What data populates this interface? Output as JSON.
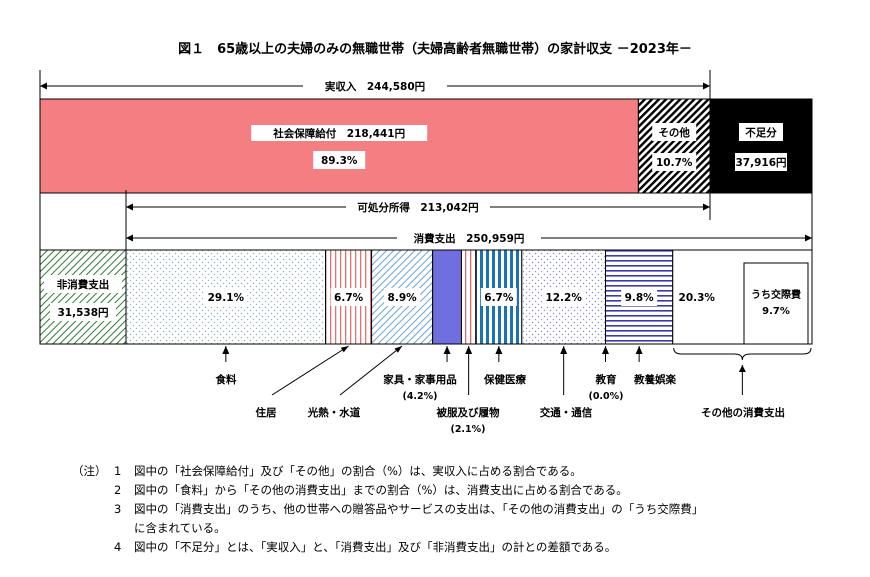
{
  "title": "図１　65歳以上の夫婦のみの無職世帯（夫婦高齢者無職世帯）の家計収支 －2023年－",
  "chart_data": {
    "type": "bar",
    "unit": "円",
    "income_row": {
      "total_label": "実収入　244,580円",
      "total_value": 244580,
      "segments": [
        {
          "name": "社会保障給付",
          "label": "社会保障給付　218,441円",
          "value": 218441,
          "pct_label": "89.3%",
          "pct": 89.3,
          "color": "#f47f83",
          "pattern": "solid"
        },
        {
          "name": "その他",
          "label": "その他",
          "value": 26139,
          "pct_label": "10.7%",
          "pct": 10.7,
          "color": "#000000",
          "pattern": "hatch"
        },
        {
          "name": "不足分",
          "label": "不足分",
          "value": 37916,
          "value_label": "37,916円",
          "color": "#000000",
          "pattern": "solid-black"
        }
      ]
    },
    "disposable": {
      "label": "可処分所得　213,042円",
      "value": 213042
    },
    "consumption": {
      "label": "消費支出　250,959円",
      "value": 250959
    },
    "spending_row": {
      "non_consumption": {
        "name": "非消費支出",
        "label": "非消費支出",
        "value": 31538,
        "value_label": "31,538円",
        "color": "#2e7d32"
      },
      "categories": [
        {
          "name": "食料",
          "pct": 29.1,
          "pct_label": "29.1%",
          "color": "#8fb0c9",
          "pattern": "dots"
        },
        {
          "name": "住居",
          "pct": 6.7,
          "pct_label": "6.7%",
          "color": "#e57373",
          "pattern": "vlines"
        },
        {
          "name": "光熱・水道",
          "pct": 8.9,
          "pct_label": "8.9%",
          "color": "#6aa3d8",
          "pattern": "diag"
        },
        {
          "name": "家具・家事用品",
          "pct": 4.2,
          "pct_label": "",
          "sub_label": "(4.2%)",
          "color": "#6f6fe0",
          "pattern": "solid"
        },
        {
          "name": "被服及び履物",
          "pct": 2.1,
          "pct_label": "",
          "sub_label": "(2.1%)",
          "color": "#e06b6b",
          "pattern": "vlines"
        },
        {
          "name": "保健医療",
          "pct": 6.7,
          "pct_label": "6.7%",
          "color": "#1a73b8",
          "pattern": "vstripes"
        },
        {
          "name": "交通・通信",
          "pct": 12.2,
          "pct_label": "12.2%",
          "color": "#8c8cd0",
          "pattern": "dots"
        },
        {
          "name": "教育",
          "pct": 0.0,
          "pct_label": "",
          "sub_label": "(0.0%)",
          "color": "#000000",
          "pattern": "none"
        },
        {
          "name": "教養娯楽",
          "pct": 9.8,
          "pct_label": "9.8%",
          "color": "#3a3aa8",
          "pattern": "hlines"
        },
        {
          "name": "その他の消費支出",
          "pct": 20.3,
          "pct_label": "20.3%",
          "color": "#ffffff",
          "pattern": "none",
          "inner_label": "うち交際費",
          "inner_pct": 9.7,
          "inner_pct_label": "9.7%"
        }
      ]
    }
  },
  "notes": {
    "head": "（注）",
    "items": [
      {
        "num": "1",
        "text": "図中の「社会保障給付」及び「その他」の割合（%）は、実収入に占める割合である。"
      },
      {
        "num": "2",
        "text": "図中の「食料」から「その他の消費支出」までの割合（%）は、消費支出に占める割合である。"
      },
      {
        "num": "3",
        "text": "図中の「消費支出」のうち、他の世帯への贈答品やサービスの支出は、「その他の消費支出」の「うち交際費」",
        "cont": "に含まれている。"
      },
      {
        "num": "4",
        "text": "図中の「不足分」とは、「実収入」と、「消費支出」及び「非消費支出」の計との差額である。"
      }
    ]
  }
}
